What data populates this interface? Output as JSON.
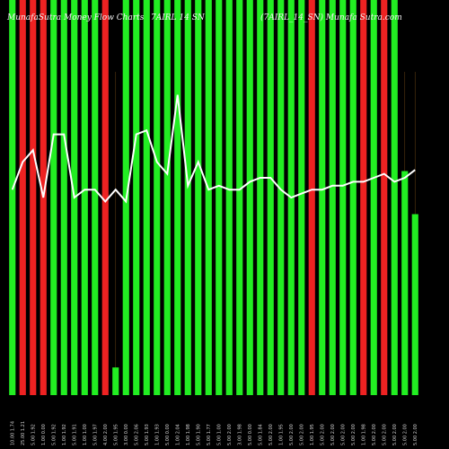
{
  "chart_data": {
    "type": "bar",
    "title_left": "MunafaSutra Money Flow Charts",
    "title_center": "7AIRL 14 SN",
    "title_right": "(7AIRL_14_SN) Munafa Sutra.com",
    "categories": [
      "10.00 1.74",
      "25.00 1.21",
      "5.00 1.92",
      "1.00 0.00",
      "5.00 1.92",
      "1.00 1.92",
      "5.00 1.91",
      "1.00 1.00",
      "5.00 1.97",
      "4.00 2.00",
      "5.00 1.95",
      "3.00 0.00",
      "5.00 2.06",
      "5.00 1.93",
      "1.00 1.93",
      "5.00 0.00",
      "1.00 2.04",
      "1.00 1.98",
      "5.00 1.90",
      "5.00 1.77",
      "5.00 1.00",
      "5.00 2.00",
      "3.00 1.98",
      "5.00 0.00",
      "5.00 1.84",
      "5.00 2.00",
      "1.00 1.95",
      "5.00 2.00",
      "5.00 2.00",
      "1.00 1.95",
      "5.00 2.00",
      "5.00 2.00",
      "5.00 2.00",
      "5.00 2.00",
      "1.00 1.98",
      "5.00 2.00",
      "5.00 2.00",
      "5.00 2.00",
      "5.00 2.00",
      "5.00 2.00"
    ],
    "bar_colors": [
      "green",
      "red",
      "red",
      "red",
      "green",
      "green",
      "green",
      "green",
      "green",
      "red",
      "green",
      "green",
      "green",
      "green",
      "green",
      "green",
      "green",
      "green",
      "green",
      "green",
      "green",
      "green",
      "green",
      "green",
      "green",
      "green",
      "green",
      "green",
      "green",
      "red",
      "green",
      "green",
      "green",
      "green",
      "red",
      "green",
      "red",
      "green",
      "green",
      "green"
    ],
    "bar_heights": [
      100,
      100,
      100,
      100,
      100,
      100,
      100,
      100,
      100,
      100,
      7,
      100,
      100,
      100,
      100,
      100,
      100,
      100,
      100,
      100,
      100,
      100,
      100,
      100,
      100,
      100,
      100,
      100,
      100,
      100,
      100,
      100,
      100,
      100,
      100,
      100,
      100,
      100,
      100,
      100
    ],
    "bar_tops_override": {
      "3": 0.4
    },
    "extra_bars": [
      {
        "index": 38,
        "height": 56.7,
        "color": "green"
      },
      {
        "index": 39,
        "height": 45.8,
        "color": "green"
      }
    ],
    "price_line": [
      52,
      59,
      62,
      50,
      66,
      66,
      50,
      52,
      52,
      49,
      52,
      49,
      66,
      67,
      59,
      56,
      76,
      53,
      59,
      52,
      53,
      52,
      52,
      54,
      55,
      55,
      52,
      50,
      51,
      52,
      52,
      53,
      53,
      54,
      54,
      55,
      56,
      54,
      55,
      57
    ],
    "ylim": [
      0,
      100
    ],
    "colors": {
      "green": "#22ee22",
      "red": "#ee2222",
      "line": "#ffffff",
      "background": "#000000",
      "text": "#f2f2f2",
      "grid": "#5a3a12"
    }
  }
}
